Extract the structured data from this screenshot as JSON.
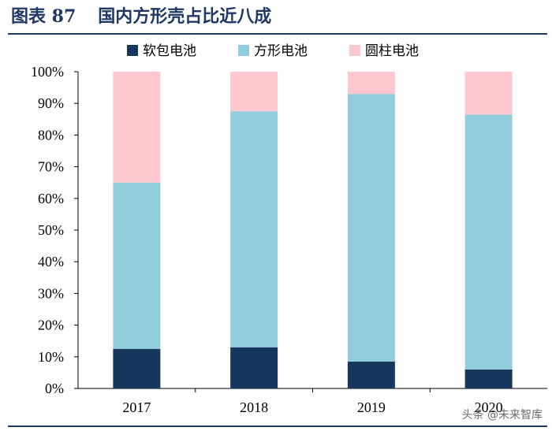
{
  "figure": {
    "label": "图表 87",
    "title": "国内方形壳占比近八成"
  },
  "watermark": "头条 @未来智库",
  "chart_data": {
    "type": "bar",
    "stacked": true,
    "categories": [
      "2017",
      "2018",
      "2019",
      "2020"
    ],
    "series": [
      {
        "name": "软包电池",
        "color": "#17375e",
        "values": [
          12.5,
          13.0,
          8.5,
          6.0
        ]
      },
      {
        "name": "方形电池",
        "color": "#92cddc",
        "values": [
          52.5,
          74.5,
          84.5,
          80.5
        ]
      },
      {
        "name": "圆柱电池",
        "color": "#ffc7ce",
        "values": [
          35.0,
          12.5,
          7.0,
          13.5
        ]
      }
    ],
    "ylim": [
      0,
      100
    ],
    "yticks": [
      "0%",
      "10%",
      "20%",
      "30%",
      "40%",
      "50%",
      "60%",
      "70%",
      "80%",
      "90%",
      "100%"
    ],
    "legend_position": "top",
    "grid": false
  }
}
